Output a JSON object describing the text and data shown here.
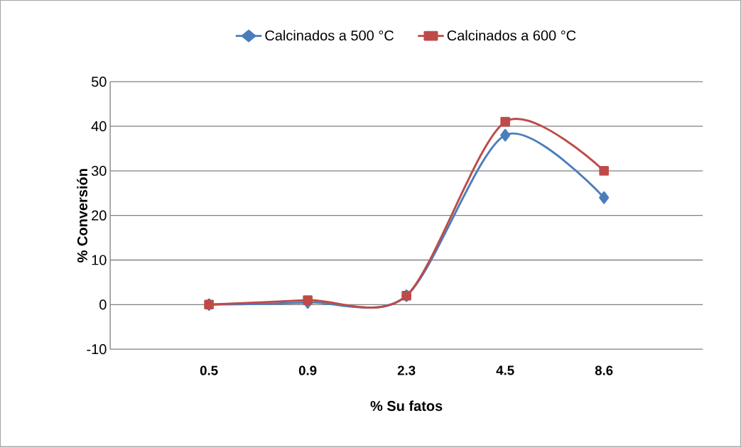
{
  "chart_data": {
    "type": "line",
    "xlabel": "%  Su fatos",
    "ylabel": "% Conversión",
    "categories": [
      "0.5",
      "0.9",
      "2.3",
      "4.5",
      "8.6"
    ],
    "series": [
      {
        "name": "Calcinados a 500 °C",
        "color": "#4a7ebb",
        "marker": "diamond",
        "values": [
          0,
          0.5,
          2,
          38,
          24
        ]
      },
      {
        "name": "Calcinados a 600 °C",
        "color": "#be4b48",
        "marker": "square",
        "values": [
          0,
          1,
          2,
          41,
          30
        ]
      }
    ],
    "ylim": [
      -10,
      50
    ],
    "yticks": [
      -10,
      0,
      10,
      20,
      30,
      40,
      50
    ],
    "grid": "y",
    "legend": "top",
    "line_style": "solid"
  }
}
